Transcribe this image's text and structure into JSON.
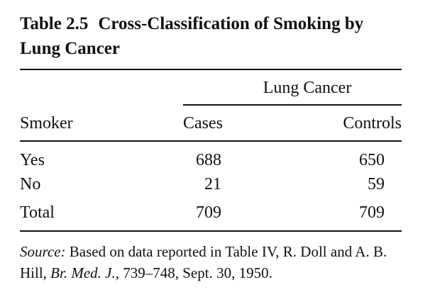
{
  "table": {
    "label": "Table 2.5",
    "title_line1": "Cross-Classification of Smoking by",
    "title_line2": "Lung Cancer",
    "spanner": "Lung Cancer",
    "headers": {
      "row_header": "Smoker",
      "col1": "Cases",
      "col2": "Controls"
    },
    "rows": [
      {
        "label": "Yes",
        "cases": "688",
        "controls": "650"
      },
      {
        "label": "No",
        "cases": "21",
        "controls": "59"
      }
    ],
    "total": {
      "label": "Total",
      "cases": "709",
      "controls": "709"
    }
  },
  "source": {
    "prefix": "Source:",
    "text_a": " Based on data reported in Table IV, R. Doll and A. B. Hill, ",
    "journal": "Br. Med. J.",
    "text_b": ", 739–748, Sept. 30, 1950."
  }
}
